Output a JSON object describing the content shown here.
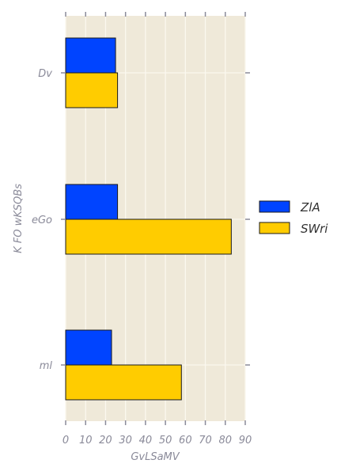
{
  "chart_data": {
    "type": "bar",
    "orientation": "horizontal",
    "categories": [
      "Dv",
      "eGo",
      "ml"
    ],
    "series": [
      {
        "name": "ZlA",
        "values": [
          25,
          26,
          23
        ],
        "color": "#0044ff"
      },
      {
        "name": "SWri",
        "values": [
          26,
          83,
          58
        ],
        "color": "#ffcc00"
      }
    ],
    "xlabel": "GvLSaMV",
    "ylabel": "K FO wKSQBs",
    "xlim": [
      0,
      90
    ],
    "xticks": [
      "0",
      "10",
      "20",
      "30",
      "40",
      "50",
      "60",
      "70",
      "80",
      "90"
    ],
    "grid": true,
    "legend_position": "right",
    "colors": {
      "plot_background": "#efe9d9",
      "grid": "#fbf8ef",
      "bar_edge": "#1a1a1a",
      "tick": "#8a8a99"
    }
  }
}
